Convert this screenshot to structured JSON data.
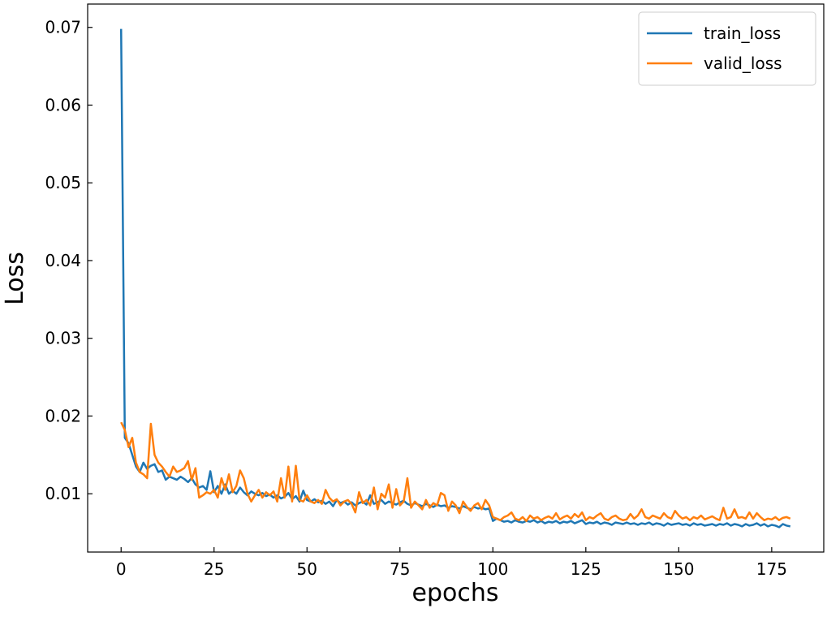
{
  "chart_data": {
    "type": "line",
    "xlabel": "epochs",
    "ylabel": "Loss",
    "x": [
      0,
      1,
      2,
      3,
      4,
      5,
      6,
      7,
      8,
      9,
      10,
      11,
      12,
      13,
      14,
      15,
      16,
      17,
      18,
      19,
      20,
      21,
      22,
      23,
      24,
      25,
      26,
      27,
      28,
      29,
      30,
      31,
      32,
      33,
      34,
      35,
      36,
      37,
      38,
      39,
      40,
      41,
      42,
      43,
      44,
      45,
      46,
      47,
      48,
      49,
      50,
      51,
      52,
      53,
      54,
      55,
      56,
      57,
      58,
      59,
      60,
      61,
      62,
      63,
      64,
      65,
      66,
      67,
      68,
      69,
      70,
      71,
      72,
      73,
      74,
      75,
      76,
      77,
      78,
      79,
      80,
      81,
      82,
      83,
      84,
      85,
      86,
      87,
      88,
      89,
      90,
      91,
      92,
      93,
      94,
      95,
      96,
      97,
      98,
      99,
      100,
      101,
      102,
      103,
      104,
      105,
      106,
      107,
      108,
      109,
      110,
      111,
      112,
      113,
      114,
      115,
      116,
      117,
      118,
      119,
      120,
      121,
      122,
      123,
      124,
      125,
      126,
      127,
      128,
      129,
      130,
      131,
      132,
      133,
      134,
      135,
      136,
      137,
      138,
      139,
      140,
      141,
      142,
      143,
      144,
      145,
      146,
      147,
      148,
      149,
      150,
      151,
      152,
      153,
      154,
      155,
      156,
      157,
      158,
      159,
      160,
      161,
      162,
      163,
      164,
      165,
      166,
      167,
      168,
      169,
      170,
      171,
      172,
      173,
      174,
      175,
      176,
      177,
      178,
      179,
      180
    ],
    "series": [
      {
        "name": "train_loss",
        "color": "#1f77b4",
        "values": [
          0.0698,
          0.0172,
          0.0165,
          0.015,
          0.0135,
          0.0128,
          0.014,
          0.0132,
          0.0136,
          0.0138,
          0.0128,
          0.013,
          0.0118,
          0.0122,
          0.012,
          0.0118,
          0.0122,
          0.0119,
          0.0115,
          0.012,
          0.0112,
          0.0108,
          0.011,
          0.0105,
          0.0129,
          0.0102,
          0.011,
          0.01,
          0.0112,
          0.01,
          0.0104,
          0.01,
          0.0108,
          0.0102,
          0.0098,
          0.0103,
          0.01,
          0.0098,
          0.0101,
          0.0097,
          0.0099,
          0.0095,
          0.0098,
          0.0094,
          0.0096,
          0.0101,
          0.0093,
          0.0097,
          0.009,
          0.0104,
          0.0092,
          0.009,
          0.0093,
          0.0089,
          0.0091,
          0.0087,
          0.009,
          0.0084,
          0.0092,
          0.0088,
          0.009,
          0.0086,
          0.0089,
          0.0085,
          0.0088,
          0.009,
          0.0086,
          0.0098,
          0.0087,
          0.0089,
          0.0092,
          0.0087,
          0.009,
          0.0088,
          0.0086,
          0.0089,
          0.0091,
          0.0087,
          0.0085,
          0.0088,
          0.0086,
          0.0084,
          0.0087,
          0.0085,
          0.0083,
          0.0086,
          0.0084,
          0.0085,
          0.0082,
          0.0084,
          0.0083,
          0.0081,
          0.0084,
          0.0082,
          0.008,
          0.0083,
          0.0081,
          0.0082,
          0.008,
          0.0081,
          0.0065,
          0.0068,
          0.0066,
          0.0064,
          0.0065,
          0.0063,
          0.0066,
          0.0064,
          0.0063,
          0.0065,
          0.0064,
          0.0066,
          0.0063,
          0.0065,
          0.0062,
          0.0064,
          0.0063,
          0.0065,
          0.0062,
          0.0064,
          0.0063,
          0.0065,
          0.0062,
          0.0064,
          0.0066,
          0.0061,
          0.0063,
          0.0062,
          0.0064,
          0.0061,
          0.0063,
          0.0062,
          0.006,
          0.0063,
          0.0062,
          0.0061,
          0.0063,
          0.0061,
          0.0062,
          0.006,
          0.0062,
          0.0061,
          0.0063,
          0.006,
          0.0062,
          0.0061,
          0.0059,
          0.0062,
          0.006,
          0.0061,
          0.0062,
          0.006,
          0.0061,
          0.0059,
          0.0062,
          0.006,
          0.0061,
          0.0059,
          0.006,
          0.0061,
          0.0059,
          0.0061,
          0.006,
          0.0062,
          0.0059,
          0.0061,
          0.006,
          0.0058,
          0.0061,
          0.0059,
          0.006,
          0.0062,
          0.0059,
          0.0061,
          0.0058,
          0.006,
          0.0059,
          0.0057,
          0.0061,
          0.0059,
          0.0058
        ]
      },
      {
        "name": "valid_loss",
        "color": "#ff7f0e",
        "values": [
          0.0192,
          0.0182,
          0.016,
          0.0172,
          0.014,
          0.0128,
          0.0125,
          0.012,
          0.019,
          0.015,
          0.014,
          0.0135,
          0.0128,
          0.0122,
          0.0135,
          0.0128,
          0.013,
          0.0133,
          0.0142,
          0.0118,
          0.0133,
          0.0095,
          0.0098,
          0.0102,
          0.01,
          0.0105,
          0.0095,
          0.012,
          0.0105,
          0.0125,
          0.0102,
          0.011,
          0.013,
          0.012,
          0.01,
          0.009,
          0.0098,
          0.0105,
          0.0095,
          0.0102,
          0.0098,
          0.0103,
          0.009,
          0.012,
          0.0095,
          0.0135,
          0.009,
          0.0136,
          0.0092,
          0.009,
          0.0098,
          0.009,
          0.0088,
          0.0092,
          0.0087,
          0.0105,
          0.0095,
          0.009,
          0.0093,
          0.0085,
          0.009,
          0.0092,
          0.0087,
          0.0076,
          0.0102,
          0.0088,
          0.0092,
          0.0085,
          0.0108,
          0.008,
          0.01,
          0.0095,
          0.0112,
          0.0082,
          0.0106,
          0.0085,
          0.009,
          0.012,
          0.0082,
          0.009,
          0.0085,
          0.008,
          0.0092,
          0.0082,
          0.0088,
          0.0085,
          0.0101,
          0.0098,
          0.0078,
          0.009,
          0.0085,
          0.0075,
          0.009,
          0.0083,
          0.0078,
          0.0085,
          0.0088,
          0.008,
          0.0092,
          0.0085,
          0.007,
          0.0068,
          0.0066,
          0.007,
          0.0072,
          0.0076,
          0.0068,
          0.0066,
          0.007,
          0.0065,
          0.0072,
          0.0068,
          0.007,
          0.0066,
          0.0069,
          0.0071,
          0.0068,
          0.0075,
          0.0067,
          0.007,
          0.0072,
          0.0068,
          0.0074,
          0.007,
          0.0076,
          0.0066,
          0.007,
          0.0068,
          0.0072,
          0.0075,
          0.0068,
          0.0066,
          0.007,
          0.0072,
          0.0068,
          0.0066,
          0.0067,
          0.0074,
          0.0068,
          0.0072,
          0.008,
          0.007,
          0.0068,
          0.0072,
          0.007,
          0.0068,
          0.0075,
          0.007,
          0.0068,
          0.0078,
          0.0072,
          0.0068,
          0.007,
          0.0066,
          0.007,
          0.0068,
          0.0072,
          0.0067,
          0.0069,
          0.0071,
          0.0068,
          0.0066,
          0.0082,
          0.0068,
          0.007,
          0.008,
          0.0069,
          0.007,
          0.0068,
          0.0076,
          0.0068,
          0.0075,
          0.007,
          0.0066,
          0.0068,
          0.0067,
          0.007,
          0.0066,
          0.0069,
          0.007,
          0.0068
        ]
      }
    ],
    "xlim": [
      -9,
      189
    ],
    "xticks": [
      0,
      25,
      50,
      75,
      100,
      125,
      150,
      175
    ],
    "ylim": [
      0.0025,
      0.073
    ],
    "yticks": [
      0.01,
      0.02,
      0.03,
      0.04,
      0.05,
      0.06,
      0.07
    ],
    "grid": false,
    "legend": "upper right"
  }
}
